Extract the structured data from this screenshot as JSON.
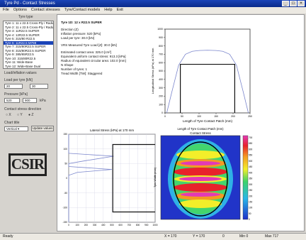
{
  "window": {
    "title": "Tyre Pd - Contact Stresses",
    "controls": [
      "_",
      "□",
      "×"
    ]
  },
  "menu": [
    "File",
    "Options",
    "Contact stresses",
    "Tyre/Contact models",
    "Help",
    "Exit"
  ],
  "left_panel": {
    "list_header": "Tyre type",
    "list_items": [
      "Tyre 1: 11 x 22.5 Cross-Ply / Radial",
      "Tyre 2: 11 x 22.5 Cross-Ply / Radial",
      "Tyre 3: 11R22.5 SUPER",
      "Tyre 4: 12R22.5 SUPER",
      "Tyre 5: 315/80 R22.5",
      "Tyre 6: 11R22.5 M788",
      "Tyre 7: 315/80R22.5 SUPER",
      "Tyre 8: 315/80R22.5 SUPER",
      "Tyre 9: 385/65R22.5",
      "Tyre 10: 315/80R22.5",
      "Tyre 11: Wide-Base",
      "Tyre 12: Wide-Base Dual"
    ],
    "selected_index": 5,
    "load_label": "20",
    "load_value": "30",
    "section_label": "Load/inflation values",
    "inflation_label": "Load per tyre [kN]",
    "pressure_label": "Pressure [kPa]",
    "pressure_value": "520",
    "pressure_max": "900",
    "pressure_unit": "kPa",
    "stress_label": "Contact stress direction",
    "radio_labels": [
      "X",
      "Y",
      "Z"
    ],
    "chart_label": "Chart title",
    "select_value": "Vertical",
    "apply_button": "Update values",
    "logo_text": "CSIR"
  },
  "info": {
    "tyre": "Tyre 1D: 12 x R22.5 SUPER",
    "direction": "Direction (Z)",
    "pressure": "Inflation pressure: 520 [kPa]",
    "load": "Load per tyre: 30.0 [kN]",
    "measured": "VRS Measured Tyre Load [Z]: 30.0 [kN]",
    "area": "Estimated contact area: 325.0 [cm²]",
    "radius1": "Equivalent uniform contact stress: 913.3 [kPa]",
    "radius2": "Radius of equivalent circular area: 102.0 [mm]",
    "shape": "N Shape",
    "tyres": "Number of tyres: 1",
    "width": "Tread Width [TW]: Staggered"
  },
  "colors": {
    "title_bar": "#1b44b8",
    "chart_line": "#7b86cc",
    "contact_rect": "#111111"
  },
  "status": {
    "left": "Ready",
    "x": "X = 170",
    "y": "Y = 170",
    "z": "0",
    "min": "Min 0",
    "max": "Max 717"
  },
  "chart_data": [
    {
      "type": "line",
      "title": "",
      "xlabel": "Length of Tyre Contact Patch (mm)",
      "ylabel": "Longitudinal Stress (kPa) at 170 mm",
      "xlim": [
        0,
        250
      ],
      "ylim": [
        0,
        1000
      ],
      "x_ticks": [
        0,
        50,
        100,
        150,
        200,
        250
      ],
      "y_ticks": [
        0,
        100,
        200,
        300,
        400,
        500,
        600,
        700,
        800,
        900,
        1000
      ],
      "series": [
        {
          "x": [
            5,
            20,
            40,
            60,
            80,
            100,
            125,
            150,
            170,
            190,
            210,
            230,
            245
          ],
          "y": [
            0,
            250,
            570,
            700,
            735,
            745,
            748,
            745,
            735,
            700,
            570,
            250,
            0
          ]
        },
        {
          "x": [
            45,
            45,
            205,
            205
          ],
          "y": [
            0,
            580,
            580,
            0
          ]
        }
      ]
    },
    {
      "type": "line",
      "title": "Lateral Stress (kPa) at 170 mm",
      "xlabel": "",
      "ylabel": "",
      "xlim": [
        0,
        1000
      ],
      "ylim": [
        -150,
        150
      ],
      "x_ticks": [
        0,
        100,
        200,
        300,
        400,
        500,
        600,
        700,
        800,
        900,
        1000
      ],
      "y_ticks": [
        -150,
        -100,
        -50,
        0,
        50,
        100,
        150
      ],
      "series": [
        {
          "x": [
            0,
            0,
            0,
            0,
            0,
            0,
            0,
            0,
            0,
            520,
            200,
            0,
            0,
            500,
            100,
            0,
            0,
            0,
            0,
            0,
            0,
            0,
            0,
            0
          ],
          "y": [
            150,
            140,
            130,
            120,
            110,
            100,
            95,
            90,
            85,
            75,
            60,
            50,
            40,
            30,
            20,
            10,
            0,
            -20,
            -40,
            -60,
            -80,
            -100,
            -120,
            -150
          ]
        },
        {
          "x": [
            1000,
            510,
            510,
            1000
          ],
          "y": [
            115,
            115,
            -115,
            -115
          ]
        }
      ]
    },
    {
      "type": "heatmap",
      "title": "Contact Stress",
      "xlabel": "Length of Tyre Contact Patch (mm)",
      "ylabel": "Tyre Width (mm)",
      "colorbar": {
        "min": 0,
        "max": 717,
        "ticks": [
          0,
          50,
          100,
          150,
          200,
          250,
          300,
          350,
          400,
          450,
          500,
          550,
          600,
          650,
          700
        ]
      }
    }
  ]
}
